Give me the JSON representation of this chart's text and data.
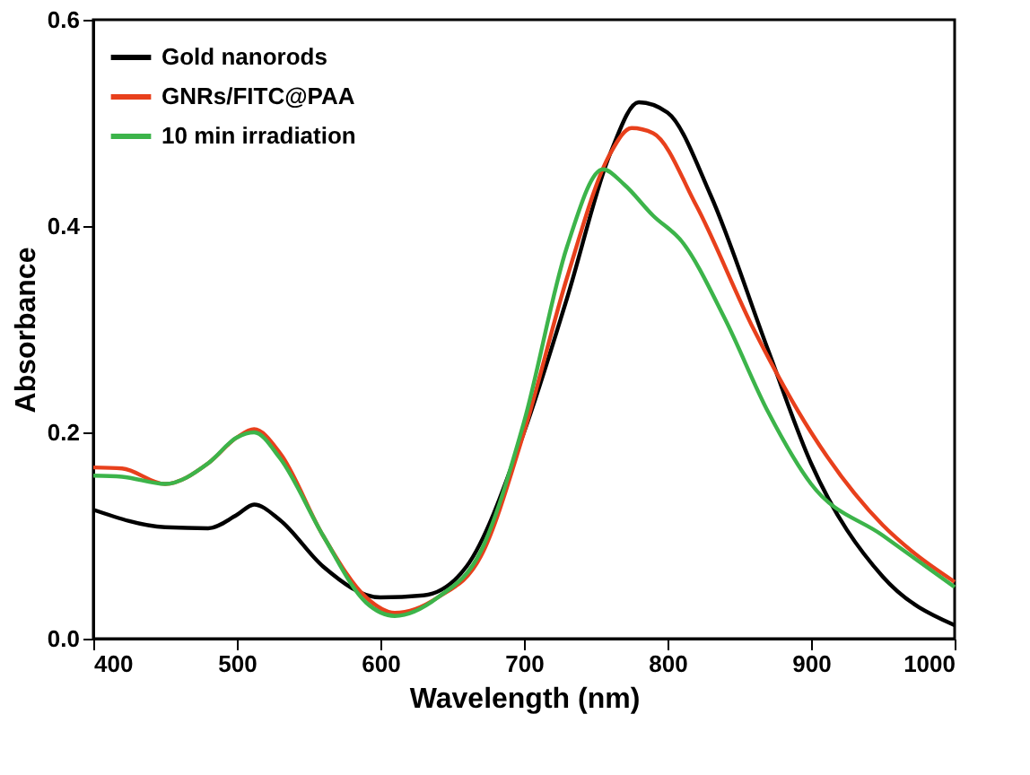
{
  "chart_data": {
    "type": "line",
    "xlabel": "Wavelength (nm)",
    "ylabel": "Absorbance",
    "xlim": [
      400,
      1000
    ],
    "xticks": [
      400,
      500,
      600,
      700,
      800,
      900,
      1000
    ],
    "ylim": [
      0,
      0.6
    ],
    "yticks": [
      {
        "value": 0,
        "label": "0.0"
      },
      {
        "value": 0.2,
        "label": "0.2"
      },
      {
        "value": 0.4,
        "label": "0.4"
      },
      {
        "value": 0.6,
        "label": "0.6"
      }
    ],
    "legend": "top left",
    "grid": false,
    "marker": "none",
    "line_style": "solid",
    "series": [
      {
        "name": "Gold nanorods",
        "color": "#000000",
        "x": [
          400,
          450,
          480,
          500,
          512,
          530,
          560,
          600,
          630,
          660,
          700,
          730,
          760,
          780,
          800,
          830,
          870,
          900,
          950,
          1000
        ],
        "values": [
          0.125,
          0.108,
          0.107,
          0.12,
          0.13,
          0.115,
          0.07,
          0.04,
          0.042,
          0.07,
          0.2,
          0.33,
          0.47,
          0.52,
          0.51,
          0.43,
          0.28,
          0.17,
          0.06,
          0.013
        ]
      },
      {
        "name": "GNRs/FITC@PAA",
        "color": "#e8401c",
        "x": [
          400,
          420,
          450,
          480,
          500,
          512,
          530,
          560,
          590,
          610,
          640,
          670,
          700,
          730,
          760,
          775,
          790,
          820,
          860,
          900,
          950,
          970,
          1000
        ],
        "values": [
          0.166,
          0.165,
          0.15,
          0.17,
          0.195,
          0.203,
          0.18,
          0.1,
          0.04,
          0.025,
          0.04,
          0.08,
          0.2,
          0.35,
          0.47,
          0.495,
          0.49,
          0.42,
          0.3,
          0.2,
          0.11,
          0.085,
          0.055
        ]
      },
      {
        "name": "10 min irradiation",
        "color": "#3cb44a",
        "x": [
          400,
          420,
          450,
          480,
          500,
          512,
          530,
          560,
          590,
          610,
          640,
          670,
          700,
          730,
          755,
          770,
          790,
          810,
          840,
          870,
          900,
          950,
          970,
          1000
        ],
        "values": [
          0.158,
          0.157,
          0.15,
          0.17,
          0.195,
          0.2,
          0.175,
          0.1,
          0.035,
          0.022,
          0.04,
          0.085,
          0.21,
          0.38,
          0.455,
          0.44,
          0.41,
          0.385,
          0.31,
          0.22,
          0.15,
          0.1,
          0.08,
          0.05
        ]
      }
    ]
  }
}
